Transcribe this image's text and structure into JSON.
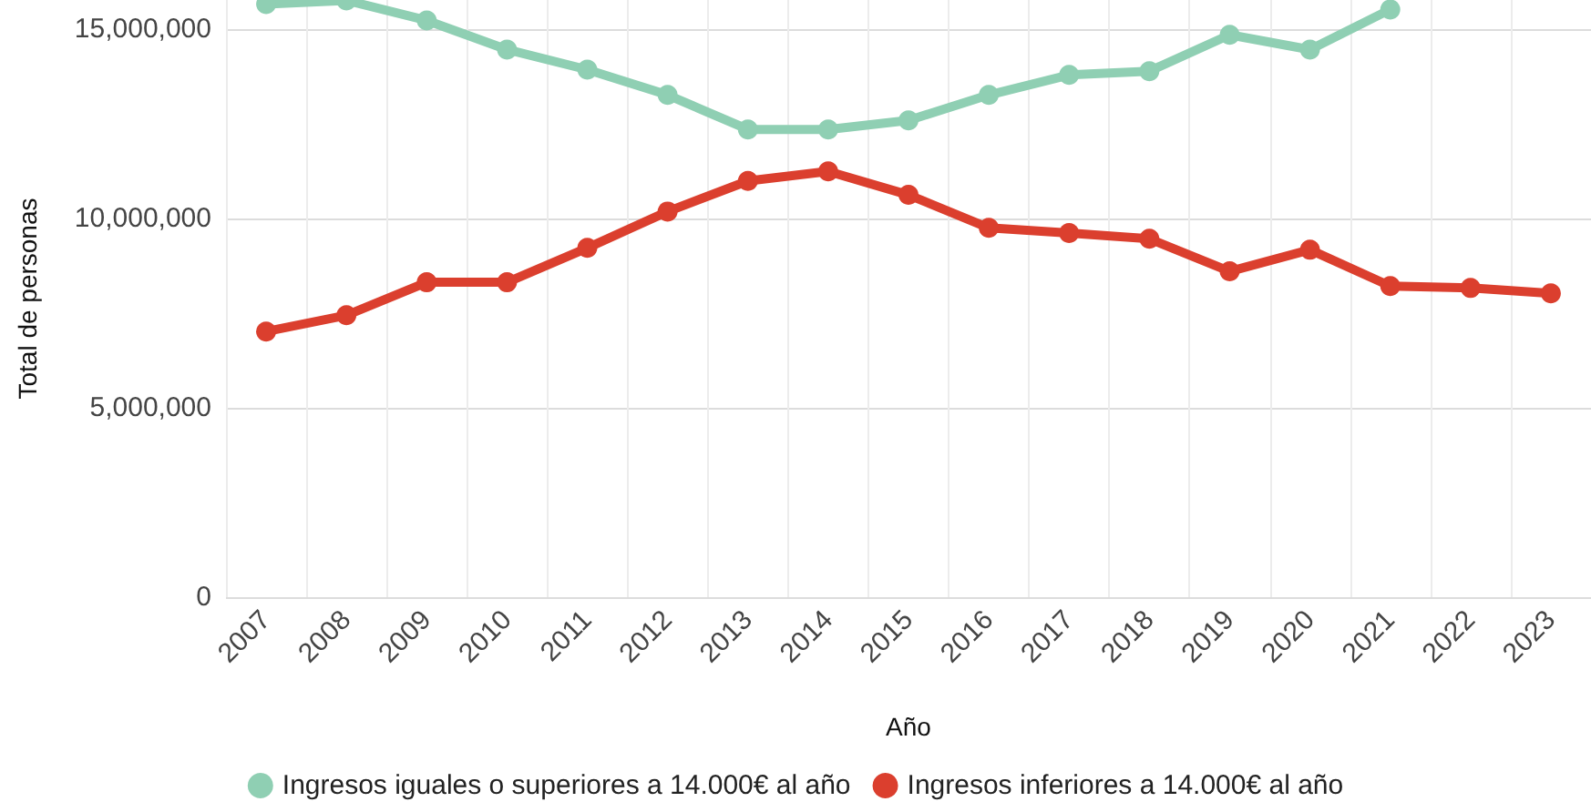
{
  "chart_data": {
    "type": "line",
    "xlabel": "Año",
    "ylabel": "Total de personas",
    "categories": [
      "2007",
      "2008",
      "2009",
      "2010",
      "2011",
      "2012",
      "2013",
      "2014",
      "2015",
      "2016",
      "2017",
      "2018",
      "2019",
      "2020",
      "2021",
      "2022",
      "2023"
    ],
    "series": [
      {
        "name": "Ingresos iguales o superiores a 14.000€ al año",
        "color": "#8fcfb3",
        "values": [
          15670000,
          15770000,
          15240000,
          14470000,
          13940000,
          13270000,
          12360000,
          12360000,
          12600000,
          13270000,
          13800000,
          13900000,
          14860000,
          14470000,
          15530000,
          null,
          null
        ]
      },
      {
        "name": "Ingresos inferiores a 14.000€ al año",
        "color": "#db3f2e",
        "values": [
          7020000,
          7450000,
          8320000,
          8320000,
          9230000,
          10190000,
          11000000,
          11250000,
          10630000,
          9760000,
          9620000,
          9470000,
          8610000,
          9180000,
          8220000,
          8170000,
          8030000
        ]
      }
    ],
    "ylim": [
      0,
      15780000
    ],
    "yticks": [
      0,
      {
        "value": 5000000,
        "label": "5,000,000"
      },
      {
        "value": 10000000,
        "label": "10,000,000"
      },
      {
        "value": 15000000,
        "label": "15,000,000"
      }
    ],
    "grid": true,
    "legend": "bottom",
    "marker": "circle",
    "line_style": "solid"
  }
}
